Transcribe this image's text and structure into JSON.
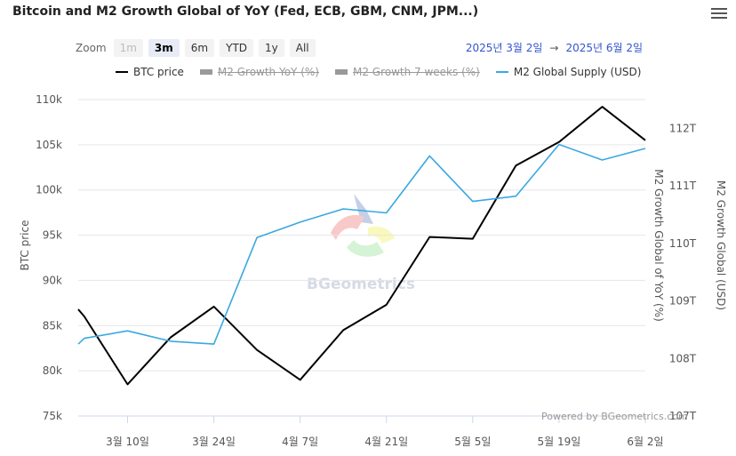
{
  "title": "Bitcoin and M2 Growth Global of YoY (Fed, ECB, GBM, CNM, JPM...)",
  "menu_icon": "hamburger-menu-icon",
  "zoom": {
    "label": "Zoom",
    "buttons": [
      {
        "label": "1m",
        "state": "disabled"
      },
      {
        "label": "3m",
        "state": "active"
      },
      {
        "label": "6m",
        "state": "normal"
      },
      {
        "label": "YTD",
        "state": "normal"
      },
      {
        "label": "1y",
        "state": "normal"
      },
      {
        "label": "All",
        "state": "normal"
      }
    ]
  },
  "range": {
    "from": "2025년 3월 2일",
    "arrow": "→",
    "to": "2025년 6월 2일"
  },
  "watermark": "BGeometrics",
  "credits": "Powered by BGeometrics.com",
  "colors": {
    "btc": "#000000",
    "m2": "#3aa8e0",
    "hidden": "#999999",
    "grid": "#e6e6e6"
  },
  "chart_data": {
    "type": "line",
    "x_ticks": [
      {
        "date": "2025-03-10",
        "label": "3월 10일"
      },
      {
        "date": "2025-03-24",
        "label": "3월 24일"
      },
      {
        "date": "2025-04-07",
        "label": "4월 7일"
      },
      {
        "date": "2025-04-21",
        "label": "4월 21일"
      },
      {
        "date": "2025-05-05",
        "label": "5월 5일"
      },
      {
        "date": "2025-05-19",
        "label": "5월 19일"
      },
      {
        "date": "2025-06-02",
        "label": "6월 2일"
      }
    ],
    "x_range": [
      "2025-03-02",
      "2025-06-02"
    ],
    "y_left": {
      "title": "BTC price",
      "range": [
        75000,
        110000
      ],
      "ticks": [
        {
          "value": 75000,
          "label": "75k"
        },
        {
          "value": 80000,
          "label": "80k"
        },
        {
          "value": 85000,
          "label": "85k"
        },
        {
          "value": 90000,
          "label": "90k"
        },
        {
          "value": 95000,
          "label": "95k"
        },
        {
          "value": 100000,
          "label": "100k"
        },
        {
          "value": 105000,
          "label": "105k"
        },
        {
          "value": 110000,
          "label": "110k"
        }
      ]
    },
    "y_right_inner": {
      "title": "M2 Growth Global of YoY (%)"
    },
    "y_right_outer": {
      "title": "M2 Growth Global (USD)",
      "range": [
        107,
        112.5
      ],
      "ticks": [
        {
          "value": 107,
          "label": "107T"
        },
        {
          "value": 108,
          "label": "108T"
        },
        {
          "value": 109,
          "label": "109T"
        },
        {
          "value": 110,
          "label": "110T"
        },
        {
          "value": 111,
          "label": "111T"
        },
        {
          "value": 112,
          "label": "112T"
        }
      ]
    },
    "legend": [
      {
        "name": "BTC price",
        "color": "#000000",
        "visible": true
      },
      {
        "name": "M2 Growth YoY (%)",
        "color": "#999999",
        "visible": false
      },
      {
        "name": "M2 Growth 7 weeks (%)",
        "color": "#999999",
        "visible": false
      },
      {
        "name": "M2 Global Supply (USD)",
        "color": "#3aa8e0",
        "visible": true
      }
    ],
    "series": [
      {
        "name": "BTC price",
        "axis": "left",
        "points": [
          [
            "2025-03-02",
            86800
          ],
          [
            "2025-03-03",
            86000
          ],
          [
            "2025-03-10",
            78500
          ],
          [
            "2025-03-17",
            83700
          ],
          [
            "2025-03-24",
            87100
          ],
          [
            "2025-03-31",
            82300
          ],
          [
            "2025-04-07",
            79000
          ],
          [
            "2025-04-14",
            84500
          ],
          [
            "2025-04-21",
            87300
          ],
          [
            "2025-04-28",
            94800
          ],
          [
            "2025-05-05",
            94600
          ],
          [
            "2025-05-12",
            102700
          ],
          [
            "2025-05-19",
            105300
          ],
          [
            "2025-05-26",
            109200
          ],
          [
            "2025-06-02",
            105500
          ]
        ]
      },
      {
        "name": "M2 Global Supply (USD)",
        "axis": "right",
        "points": [
          [
            "2025-03-02",
            108.25
          ],
          [
            "2025-03-03",
            108.35
          ],
          [
            "2025-03-10",
            108.48
          ],
          [
            "2025-03-17",
            108.3
          ],
          [
            "2025-03-24",
            108.25
          ],
          [
            "2025-03-31",
            110.1
          ],
          [
            "2025-04-07",
            110.37
          ],
          [
            "2025-04-14",
            110.6
          ],
          [
            "2025-04-21",
            110.53
          ],
          [
            "2025-04-28",
            111.52
          ],
          [
            "2025-05-05",
            110.73
          ],
          [
            "2025-05-12",
            110.82
          ],
          [
            "2025-05-19",
            111.72
          ],
          [
            "2025-05-26",
            111.45
          ],
          [
            "2025-06-02",
            111.65
          ]
        ]
      }
    ]
  }
}
